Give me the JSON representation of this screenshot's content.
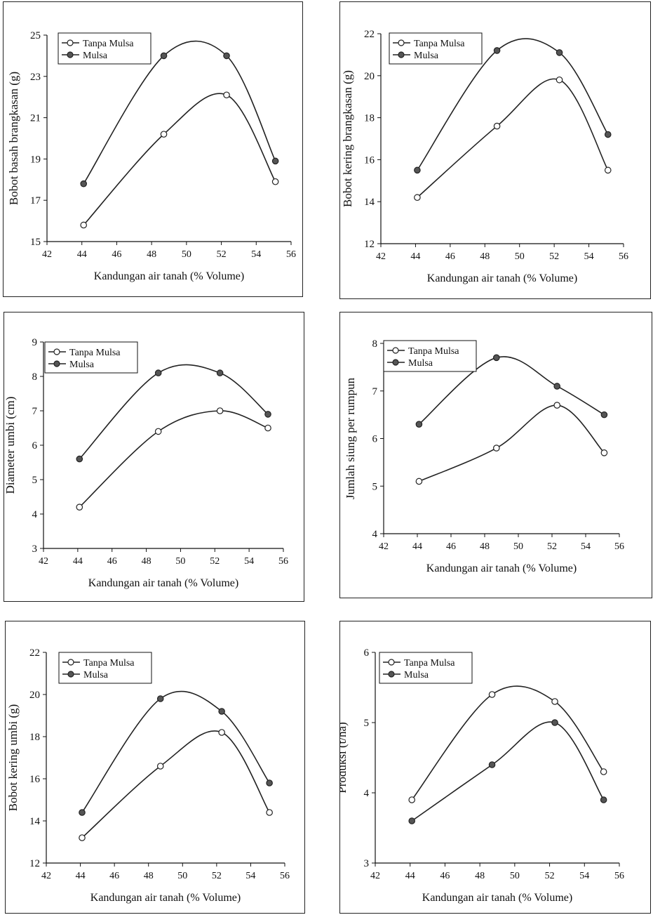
{
  "chart_data": [
    {
      "type": "line",
      "title": "",
      "xlabel": "Kandungan air tanah (% Volume)",
      "ylabel": "Bobot basah brangkasan (g)",
      "xlim": [
        42,
        56
      ],
      "ylim": [
        15,
        25
      ],
      "xticks": [
        42,
        44,
        46,
        48,
        50,
        52,
        54,
        56
      ],
      "yticks": [
        15,
        17,
        19,
        21,
        23,
        25
      ],
      "legend": "top-left",
      "grid": false,
      "x": [
        44.1,
        48.7,
        52.3,
        55.1
      ],
      "series": [
        {
          "name": "Tanpa Mulsa",
          "marker": "open",
          "values": [
            15.8,
            20.2,
            22.1,
            17.9
          ]
        },
        {
          "name": "Mulsa",
          "marker": "filled",
          "values": [
            17.8,
            24.0,
            24.0,
            18.9
          ]
        }
      ]
    },
    {
      "type": "line",
      "title": "",
      "xlabel": "Kandungan air tanah (% Volume)",
      "ylabel": "Bobot kering brangkasan (g)",
      "xlim": [
        42,
        56
      ],
      "ylim": [
        12,
        22
      ],
      "xticks": [
        42,
        44,
        46,
        48,
        50,
        52,
        54,
        56
      ],
      "yticks": [
        12,
        14,
        16,
        18,
        20,
        22
      ],
      "legend": "top-left",
      "grid": false,
      "x": [
        44.1,
        48.7,
        52.3,
        55.1
      ],
      "series": [
        {
          "name": "Tanpa Mulsa",
          "marker": "open",
          "values": [
            14.2,
            17.6,
            19.8,
            15.5
          ]
        },
        {
          "name": "Mulsa",
          "marker": "filled",
          "values": [
            15.5,
            21.2,
            21.1,
            17.2
          ]
        }
      ]
    },
    {
      "type": "line",
      "title": "",
      "xlabel": "Kandungan air tanah (% Volume)",
      "ylabel": "Diameter umbi (cm)",
      "xlim": [
        42,
        56
      ],
      "ylim": [
        3,
        9
      ],
      "xticks": [
        42,
        44,
        46,
        48,
        50,
        52,
        54,
        56
      ],
      "yticks": [
        3,
        4,
        5,
        6,
        7,
        8,
        9
      ],
      "legend": "top-left",
      "grid": false,
      "x": [
        44.1,
        48.7,
        52.3,
        55.1
      ],
      "series": [
        {
          "name": "Tanpa Mulsa",
          "marker": "open",
          "values": [
            4.2,
            6.4,
            7.0,
            6.5
          ]
        },
        {
          "name": "Mulsa",
          "marker": "filled",
          "values": [
            5.6,
            8.1,
            8.1,
            6.9
          ]
        }
      ]
    },
    {
      "type": "line",
      "title": "",
      "xlabel": "Kandungan air tanah (% Volume)",
      "ylabel": "Jumlah siung per rumpun",
      "xlim": [
        42,
        56
      ],
      "ylim": [
        4,
        8
      ],
      "xticks": [
        42,
        44,
        46,
        48,
        50,
        52,
        54,
        56
      ],
      "yticks": [
        4,
        5,
        6,
        7,
        8
      ],
      "legend": "top-left",
      "grid": false,
      "x": [
        44.1,
        48.7,
        52.3,
        55.1
      ],
      "series": [
        {
          "name": "Tanpa Mulsa",
          "marker": "open",
          "values": [
            5.1,
            5.8,
            6.7,
            5.7
          ]
        },
        {
          "name": "Mulsa",
          "marker": "filled",
          "values": [
            6.3,
            7.7,
            7.1,
            6.5
          ]
        }
      ]
    },
    {
      "type": "line",
      "title": "",
      "xlabel": "Kandungan air tanah (% Volume)",
      "ylabel": "Bobot kering umbi (g)",
      "xlim": [
        42,
        56
      ],
      "ylim": [
        12,
        22
      ],
      "xticks": [
        42,
        44,
        46,
        48,
        50,
        52,
        54,
        56
      ],
      "yticks": [
        12,
        14,
        16,
        18,
        20,
        22
      ],
      "legend": "top-left",
      "grid": false,
      "x": [
        44.1,
        48.7,
        52.3,
        55.1
      ],
      "series": [
        {
          "name": "Tanpa Mulsa",
          "marker": "open",
          "values": [
            13.2,
            16.6,
            18.2,
            14.4
          ]
        },
        {
          "name": "Mulsa",
          "marker": "filled",
          "values": [
            14.4,
            19.8,
            19.2,
            15.8
          ]
        }
      ]
    },
    {
      "type": "line",
      "title": "",
      "xlabel": "Kandungan air tanah (% Volume)",
      "ylabel": "Produksi (t/ha)",
      "xlim": [
        42,
        56
      ],
      "ylim": [
        3,
        6
      ],
      "xticks": [
        42,
        44,
        46,
        48,
        50,
        52,
        54,
        56
      ],
      "yticks": [
        3,
        4,
        5,
        6
      ],
      "legend": "top-left",
      "grid": false,
      "x": [
        44.1,
        48.7,
        52.3,
        55.1
      ],
      "series": [
        {
          "name": "Tanpa Mulsa",
          "marker": "open",
          "values": [
            3.9,
            5.4,
            5.3,
            4.3
          ]
        },
        {
          "name": "Mulsa",
          "marker": "filled",
          "values": [
            3.6,
            4.4,
            5.0,
            3.9
          ]
        }
      ]
    }
  ],
  "colors": {
    "line": "#222222",
    "filled_marker": "#555555",
    "open_marker": "#ffffff"
  }
}
